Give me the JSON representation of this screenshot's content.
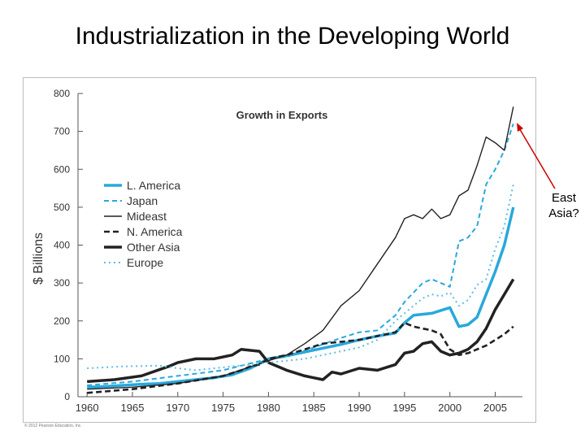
{
  "slide": {
    "title": "Industrialization in the Developing World",
    "annotation_line1": "East",
    "annotation_line2": "Asia?",
    "copyright": "© 2012 Pearson Education, Inc."
  },
  "colors": {
    "l_america": "#29a8dc",
    "japan": "#29a8dc",
    "mideast": "#222222",
    "n_america": "#222222",
    "other_asia": "#222222",
    "europe": "#5bbde6",
    "arrow": "#cc0000",
    "axis": "#555555",
    "text": "#333333"
  },
  "chart_data": {
    "type": "line",
    "title": "Growth in Exports",
    "ylabel": "$ Billions",
    "xlabel": "",
    "xlim": [
      1960,
      2008
    ],
    "ylim": [
      0,
      800
    ],
    "xticks": [
      1960,
      1965,
      1970,
      1975,
      1980,
      1985,
      1990,
      1995,
      2000,
      2005
    ],
    "yticks": [
      0,
      100,
      200,
      300,
      400,
      500,
      600,
      700,
      800
    ],
    "grid": false,
    "legend_position": "upper-left",
    "series": [
      {
        "name": "L. America",
        "style": "thick-solid",
        "color": "#29a8dc",
        "x": [
          1960,
          1962,
          1964,
          1966,
          1968,
          1970,
          1972,
          1974,
          1976,
          1978,
          1980,
          1982,
          1984,
          1986,
          1988,
          1990,
          1992,
          1994,
          1995,
          1996,
          1998,
          2000,
          2001,
          2002,
          2003,
          2004,
          2005,
          2006,
          2007
        ],
        "y": [
          25,
          27,
          30,
          33,
          35,
          40,
          45,
          50,
          58,
          75,
          100,
          108,
          118,
          128,
          138,
          150,
          160,
          168,
          195,
          215,
          220,
          235,
          185,
          190,
          210,
          270,
          330,
          400,
          500
        ]
      },
      {
        "name": "Japan",
        "style": "dashed",
        "color": "#29a8dc",
        "x": [
          1960,
          1965,
          1970,
          1975,
          1980,
          1982,
          1985,
          1988,
          1990,
          1992,
          1994,
          1995,
          1996,
          1997,
          1998,
          2000,
          2001,
          2002,
          2003,
          2004,
          2005,
          2006,
          2007
        ],
        "y": [
          30,
          40,
          55,
          70,
          100,
          105,
          130,
          155,
          170,
          175,
          215,
          250,
          275,
          300,
          310,
          290,
          410,
          420,
          450,
          560,
          600,
          650,
          720
        ]
      },
      {
        "name": "Mideast",
        "style": "thin-solid",
        "color": "#222222",
        "x": [
          1960,
          1965,
          1970,
          1975,
          1980,
          1982,
          1984,
          1986,
          1988,
          1990,
          1992,
          1994,
          1995,
          1996,
          1997,
          1998,
          1999,
          2000,
          2001,
          2002,
          2003,
          2004,
          2005,
          2006,
          2007
        ],
        "y": [
          20,
          25,
          35,
          55,
          95,
          110,
          140,
          175,
          240,
          280,
          350,
          420,
          470,
          480,
          470,
          495,
          470,
          480,
          530,
          545,
          610,
          685,
          670,
          650,
          765
        ]
      },
      {
        "name": "N. America",
        "style": "thick-dashed",
        "color": "#222222",
        "x": [
          1960,
          1965,
          1970,
          1975,
          1977,
          1978,
          1979,
          1980,
          1982,
          1984,
          1986,
          1988,
          1990,
          1992,
          1994,
          1995,
          1996,
          1997,
          1998,
          1999,
          2000,
          2001,
          2002,
          2003,
          2004,
          2005,
          2006,
          2007
        ],
        "y": [
          10,
          20,
          35,
          55,
          70,
          80,
          85,
          100,
          110,
          125,
          140,
          145,
          150,
          160,
          170,
          195,
          185,
          180,
          175,
          165,
          125,
          110,
          115,
          125,
          135,
          150,
          165,
          185
        ]
      },
      {
        "name": "Other Asia",
        "style": "thick-solid",
        "color": "#222222",
        "x": [
          1960,
          1963,
          1966,
          1969,
          1970,
          1972,
          1974,
          1976,
          1977,
          1979,
          1980,
          1982,
          1984,
          1986,
          1987,
          1988,
          1990,
          1992,
          1994,
          1995,
          1996,
          1997,
          1998,
          1999,
          2000,
          2001,
          2002,
          2003,
          2004,
          2005,
          2006,
          2007
        ],
        "y": [
          40,
          45,
          55,
          80,
          90,
          100,
          100,
          110,
          125,
          120,
          90,
          70,
          55,
          45,
          65,
          60,
          75,
          70,
          85,
          115,
          120,
          140,
          145,
          120,
          110,
          115,
          125,
          145,
          180,
          230,
          270,
          310
        ]
      },
      {
        "name": "Europe",
        "style": "dotted",
        "color": "#5bbde6",
        "x": [
          1960,
          1964,
          1968,
          1970,
          1972,
          1976,
          1978,
          1980,
          1982,
          1984,
          1986,
          1988,
          1990,
          1992,
          1993,
          1994,
          1995,
          1996,
          1997,
          1998,
          1999,
          2000,
          2001,
          2002,
          2003,
          2004,
          2005,
          2006,
          2007
        ],
        "y": [
          75,
          80,
          82,
          75,
          70,
          80,
          85,
          90,
          95,
          100,
          110,
          120,
          130,
          150,
          175,
          200,
          220,
          240,
          260,
          270,
          265,
          275,
          240,
          255,
          295,
          310,
          390,
          450,
          560
        ]
      }
    ]
  }
}
